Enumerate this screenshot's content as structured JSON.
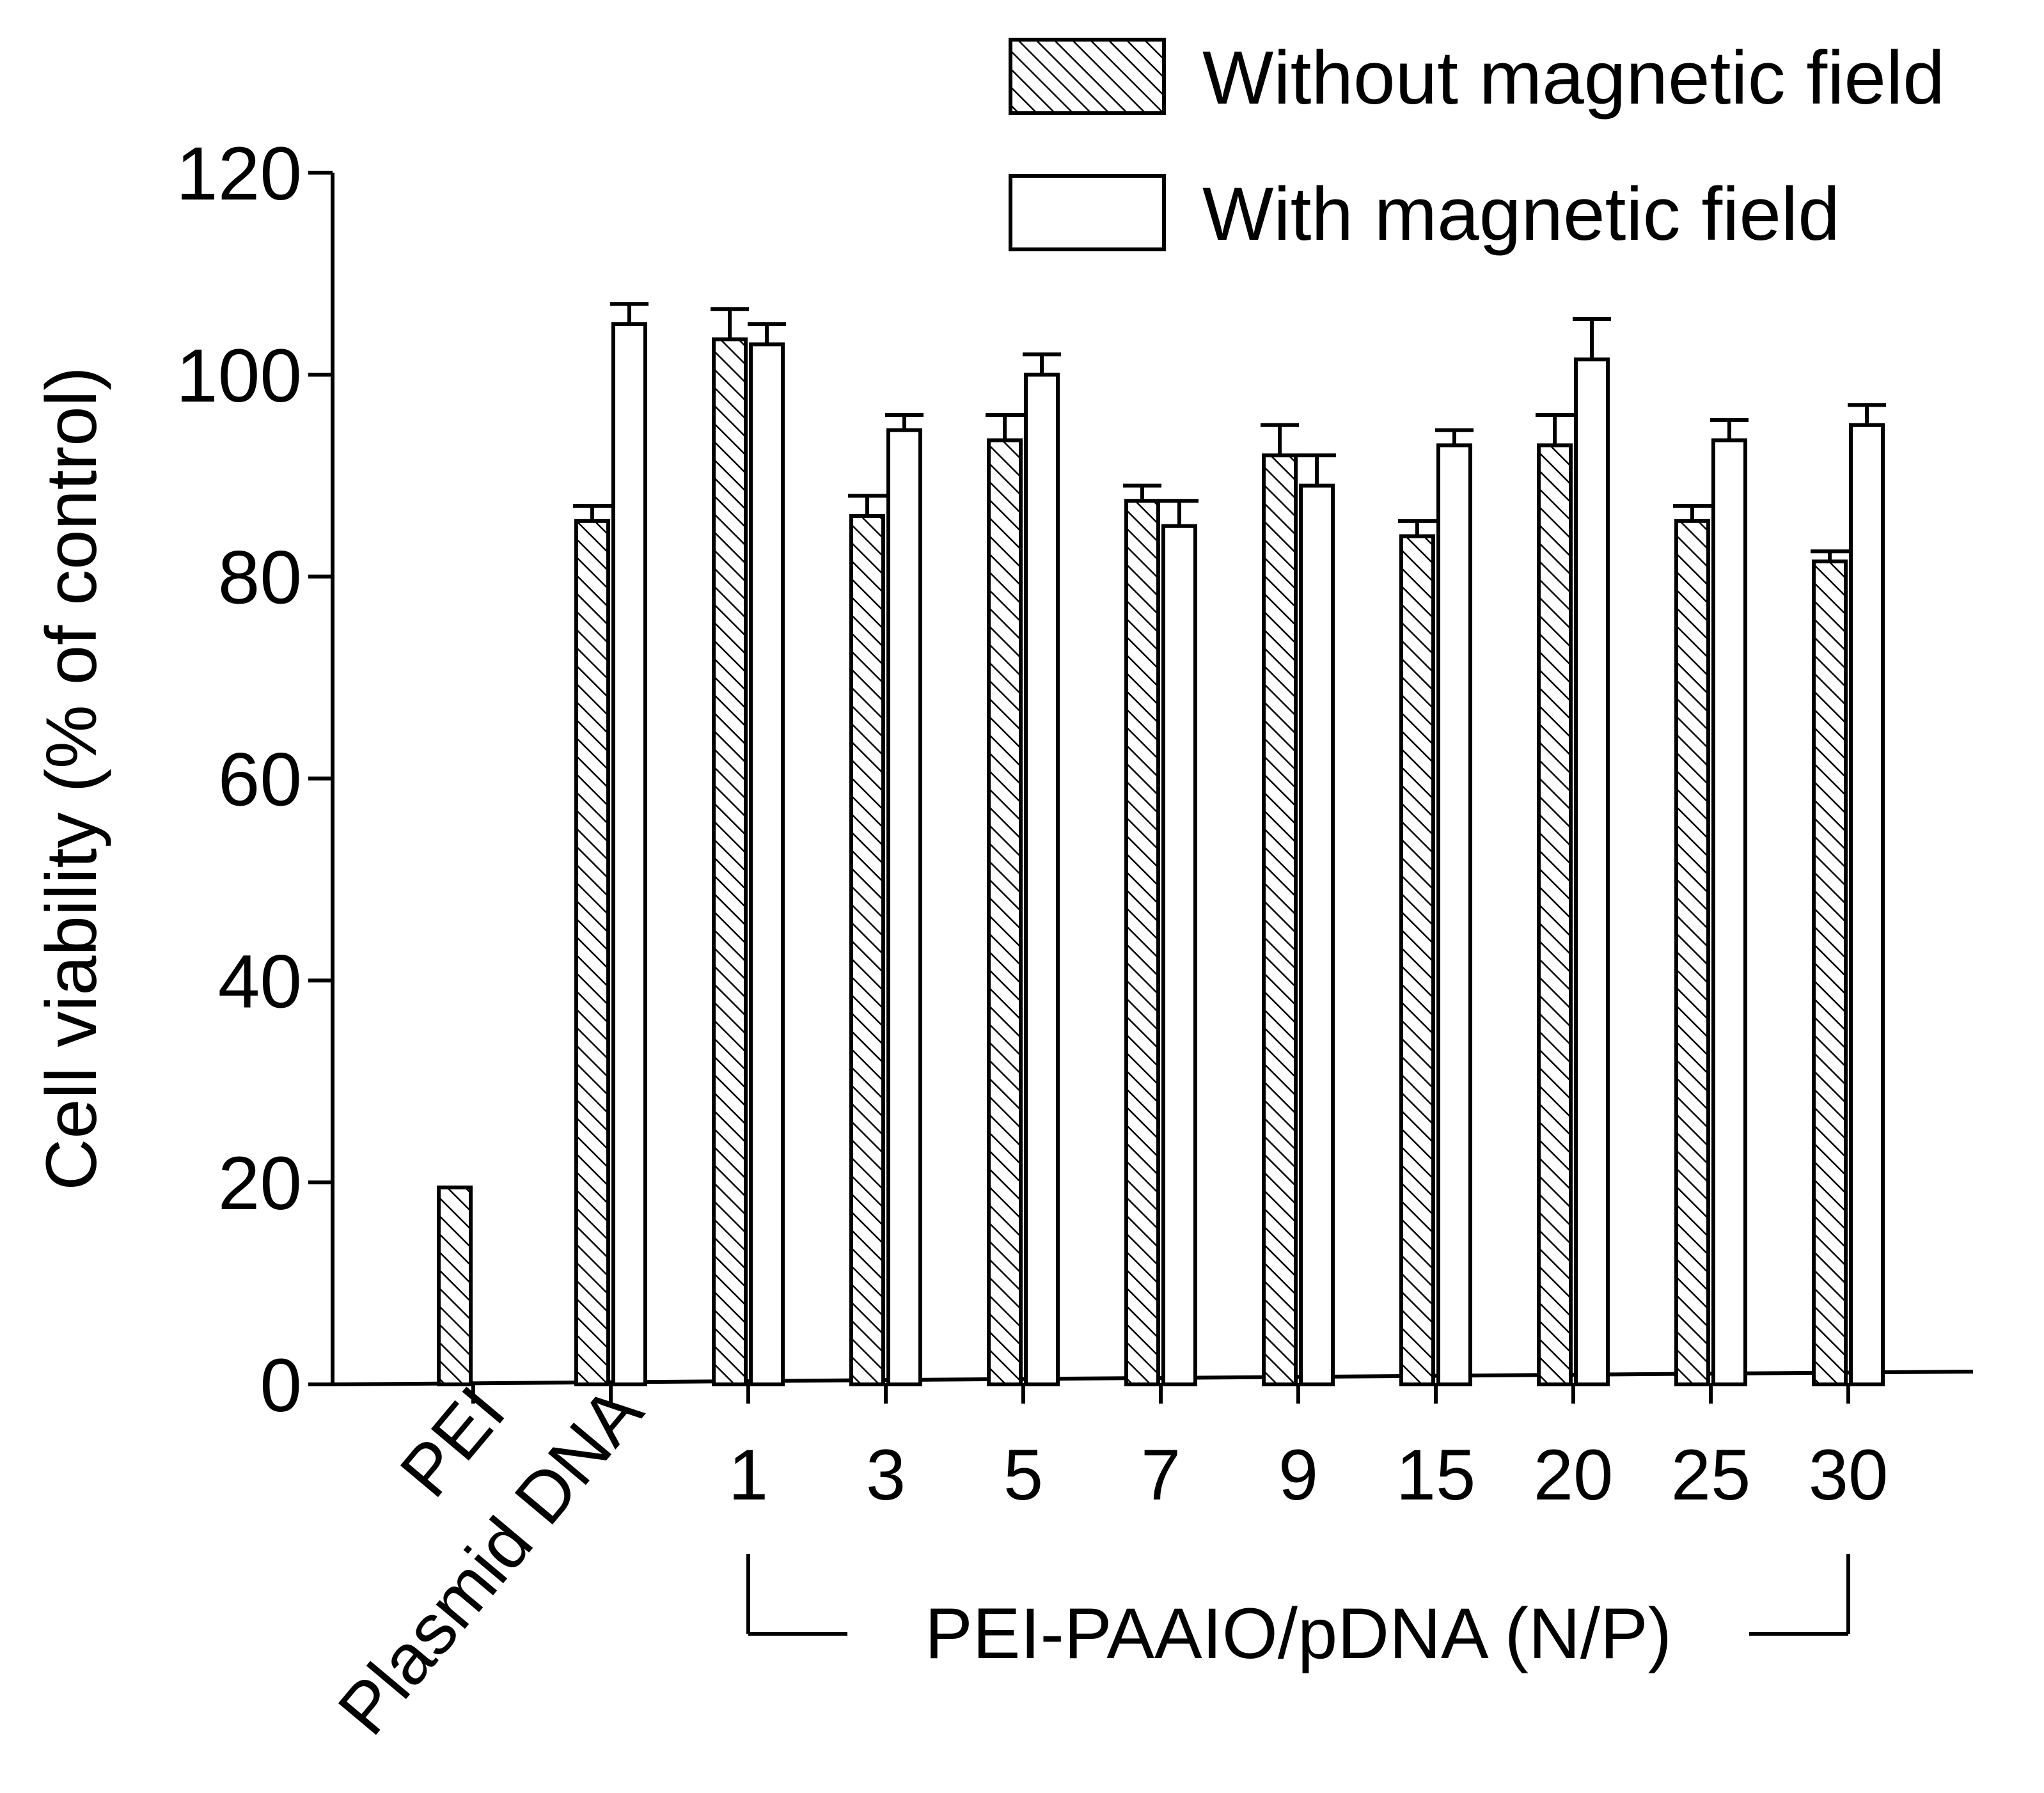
{
  "chart_data": {
    "type": "bar",
    "ylabel": "Cell viability (% of control)",
    "xlabel": "",
    "ylim": [
      0,
      120
    ],
    "yticks": [
      0,
      20,
      40,
      60,
      80,
      100,
      120
    ],
    "grid": false,
    "legend_position": "top-right",
    "categories": [
      "PEI",
      "Plasmid DNA",
      "1",
      "3",
      "5",
      "7",
      "9",
      "15",
      "20",
      "25",
      "30"
    ],
    "group_label": "PEI-PAAIO/pDNA (N/P)",
    "series": [
      {
        "name": "Without magnetic field",
        "pattern": "hatched",
        "values": [
          19.5,
          85.5,
          103.5,
          86,
          93.5,
          87.5,
          92,
          84,
          93,
          85.5,
          81.5
        ],
        "errors": [
          0,
          1.5,
          3,
          2,
          2.5,
          1.5,
          3,
          1.5,
          3,
          1.5,
          1
        ]
      },
      {
        "name": "With magnetic field",
        "pattern": "open",
        "values": [
          null,
          105,
          103,
          94.5,
          100,
          85,
          89,
          93,
          101.5,
          93.5,
          95
        ],
        "errors": [
          0,
          2,
          2,
          1.5,
          2,
          2.5,
          3,
          1.5,
          4,
          2,
          2
        ]
      }
    ]
  },
  "colors": {
    "ink": "#000000",
    "background": "#ffffff"
  }
}
